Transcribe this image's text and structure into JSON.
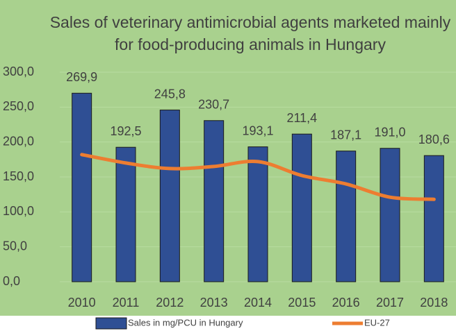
{
  "chart_data": {
    "type": "bar",
    "title": "Sales of veterinary antimicrobial agents marketed mainly for food-producing animals in Hungary",
    "categories": [
      "2010",
      "2011",
      "2012",
      "2013",
      "2014",
      "2015",
      "2016",
      "2017",
      "2018"
    ],
    "series": [
      {
        "name": "Sales in mg/PCU in Hungary",
        "type": "bar",
        "color": "#2f4f94",
        "values": [
          269.9,
          192.5,
          245.8,
          230.7,
          193.1,
          211.4,
          187.1,
          191.0,
          180.6
        ],
        "value_labels": [
          "269,9",
          "192,5",
          "245,8",
          "230,7",
          "193,1",
          "211,4",
          "187,1",
          "191,0",
          "180,6"
        ]
      },
      {
        "name": "EU-27",
        "type": "line",
        "color": "#ed7d31",
        "values": [
          182,
          170,
          162,
          165,
          172,
          152,
          140,
          121,
          118
        ]
      }
    ],
    "ylim": [
      0,
      300
    ],
    "yticks": [
      {
        "value": 0,
        "label": "0,0"
      },
      {
        "value": 50,
        "label": "50,0"
      },
      {
        "value": 100,
        "label": "100,0"
      },
      {
        "value": 150,
        "label": "150,0"
      },
      {
        "value": 200,
        "label": "200,0"
      },
      {
        "value": 250,
        "label": "250,0"
      },
      {
        "value": 300,
        "label": "300,0"
      }
    ],
    "grid": true
  }
}
